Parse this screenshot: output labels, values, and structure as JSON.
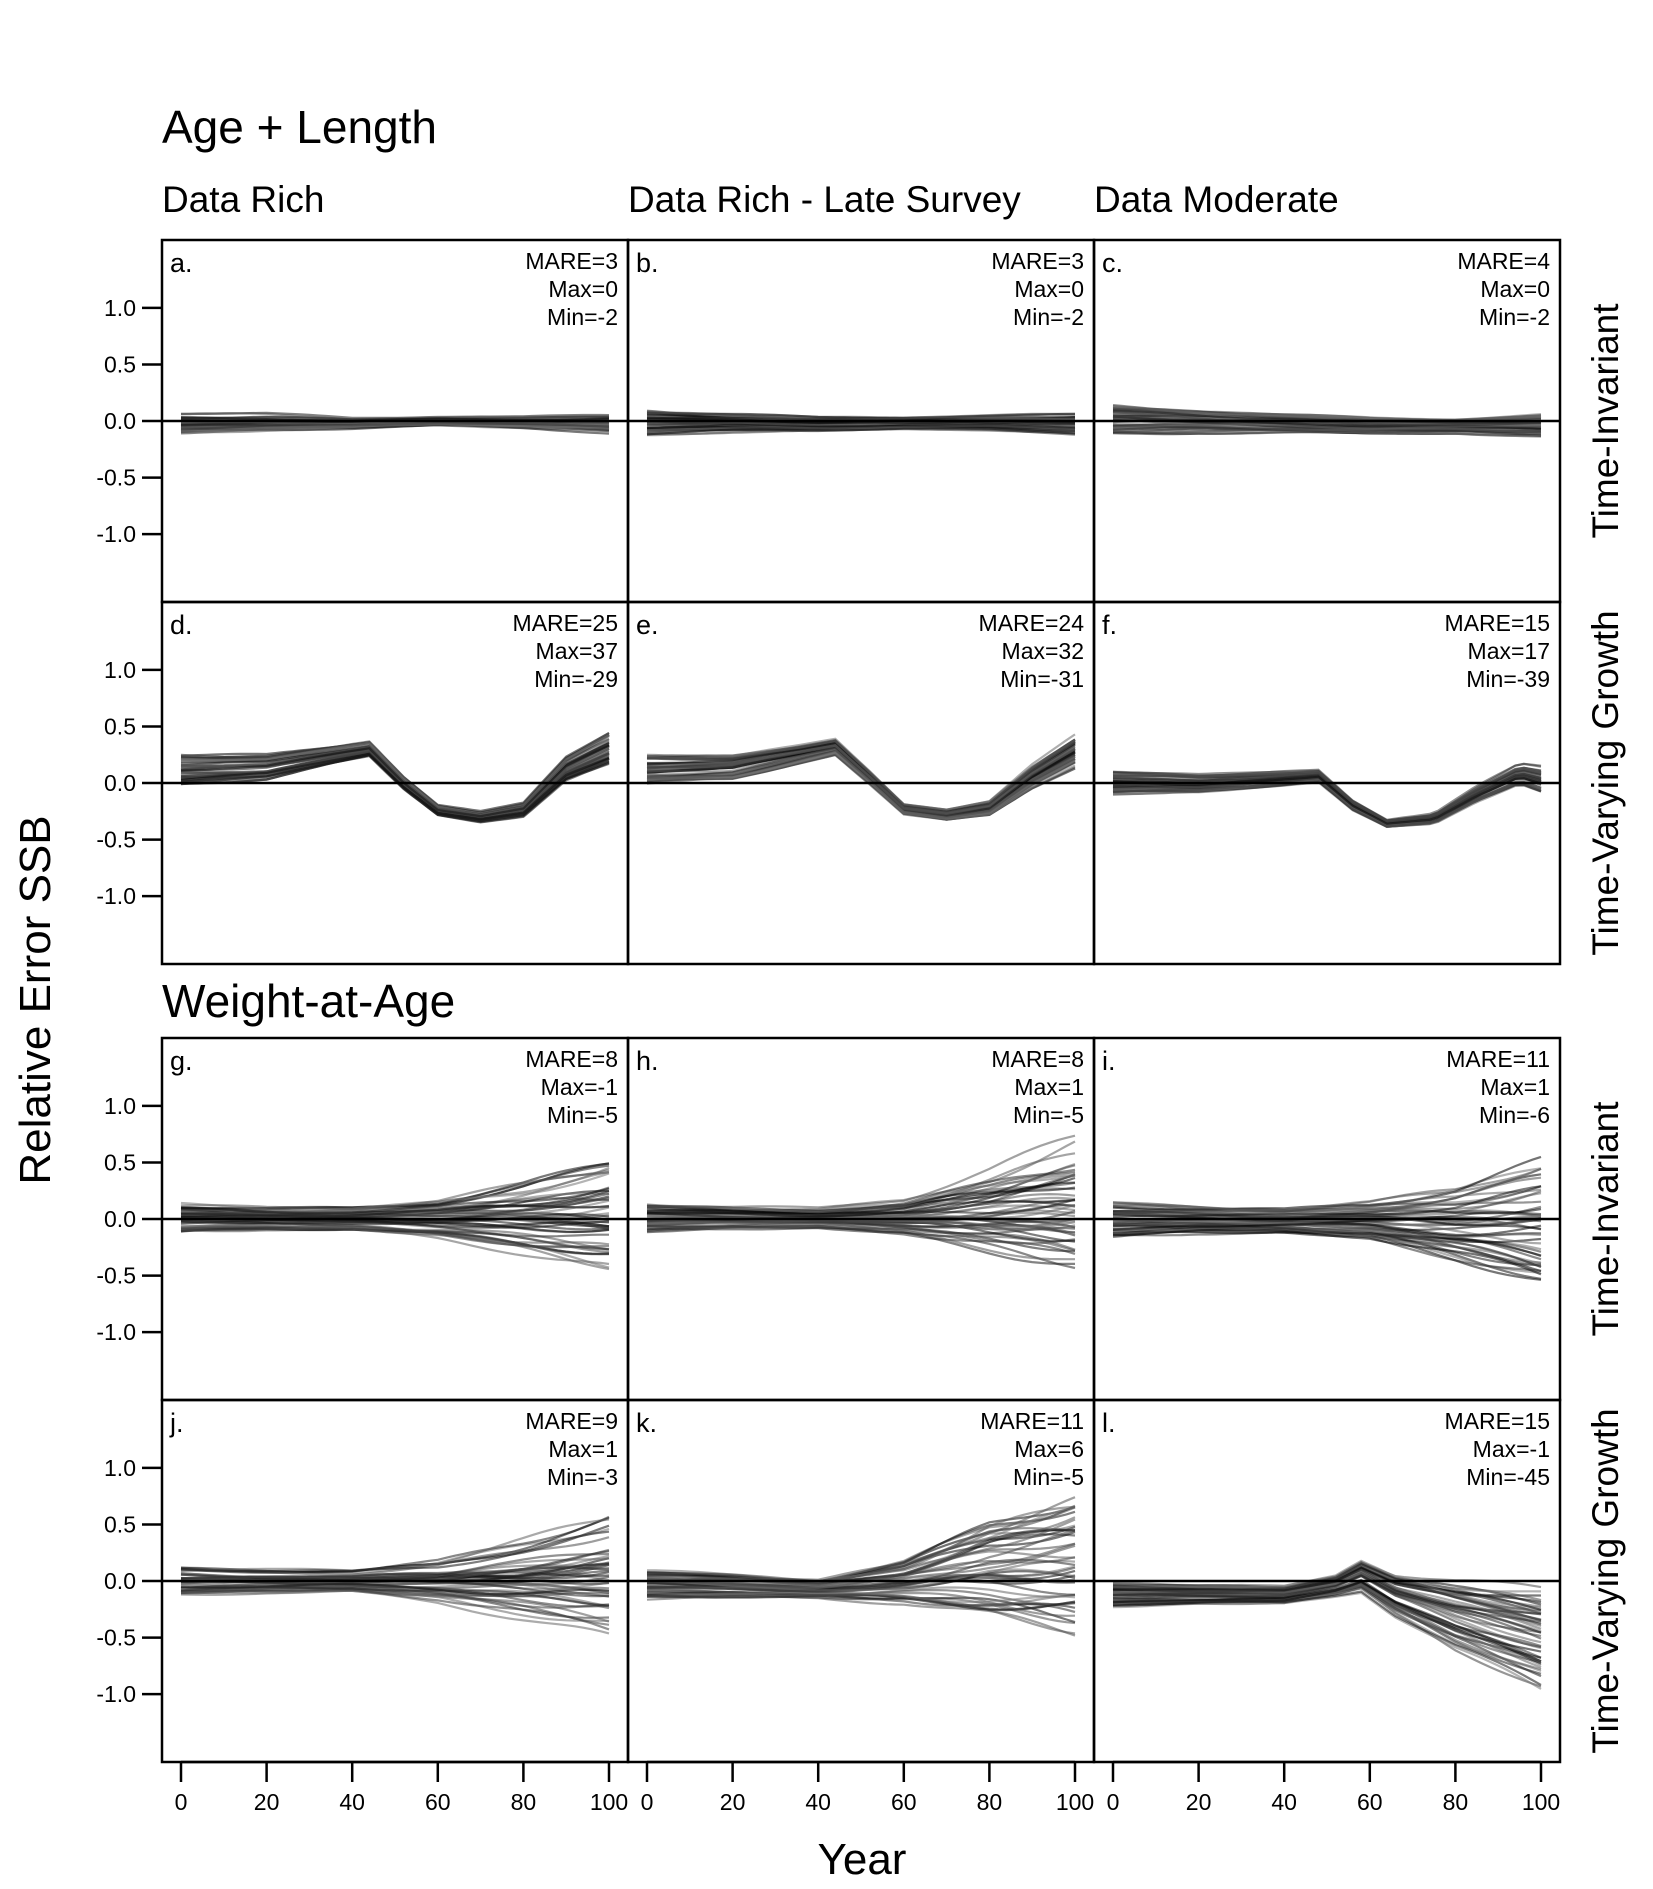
{
  "chart_data": {
    "type": "line",
    "ylabel": "Relative Error SSB",
    "xlabel": "Year",
    "x_range": [
      0,
      100
    ],
    "x_ticks": [
      0,
      20,
      40,
      60,
      80,
      100
    ],
    "ylim": [
      -1.6,
      1.6
    ],
    "y_ticks": [
      1.0,
      0.5,
      0.0,
      -0.5,
      -1.0
    ],
    "y_tick_labels": [
      "1.0",
      "0.5",
      "0.0",
      "-0.5",
      "-1.0"
    ],
    "reference_line": 0.0,
    "line_color": "#000000",
    "sections": [
      {
        "title": "Age + Length",
        "columns": [
          "Data Rich",
          "Data Rich - Late Survey",
          "Data Moderate"
        ],
        "rows": [
          "Time-Invariant",
          "Time-Varying Growth"
        ]
      },
      {
        "title": "Weight-at-Age",
        "columns": [],
        "rows": [
          "Time-Invariant",
          "Time-Varying Growth"
        ]
      }
    ],
    "panels": [
      {
        "letter": "a.",
        "mare": "MARE=3",
        "max": "Max=0",
        "min": "Min=-2",
        "median": [
          [
            0,
            -0.02
          ],
          [
            20,
            -0.01
          ],
          [
            40,
            -0.02
          ],
          [
            60,
            0.0
          ],
          [
            80,
            -0.01
          ],
          [
            100,
            -0.02
          ]
        ],
        "spread": [
          [
            0,
            0.1
          ],
          [
            20,
            0.08
          ],
          [
            40,
            0.05
          ],
          [
            60,
            0.04
          ],
          [
            80,
            0.05
          ],
          [
            100,
            0.08
          ]
        ]
      },
      {
        "letter": "b.",
        "mare": "MARE=3",
        "max": "Max=0",
        "min": "Min=-2",
        "median": [
          [
            0,
            -0.02
          ],
          [
            20,
            -0.02
          ],
          [
            40,
            -0.03
          ],
          [
            60,
            -0.02
          ],
          [
            80,
            -0.02
          ],
          [
            100,
            -0.03
          ]
        ],
        "spread": [
          [
            0,
            0.11
          ],
          [
            20,
            0.08
          ],
          [
            40,
            0.06
          ],
          [
            60,
            0.05
          ],
          [
            80,
            0.06
          ],
          [
            100,
            0.08
          ]
        ]
      },
      {
        "letter": "c.",
        "mare": "MARE=4",
        "max": "Max=0",
        "min": "Min=-2",
        "median": [
          [
            0,
            0.01
          ],
          [
            20,
            0.0
          ],
          [
            40,
            -0.02
          ],
          [
            60,
            -0.04
          ],
          [
            80,
            -0.04
          ],
          [
            100,
            -0.04
          ]
        ],
        "spread": [
          [
            0,
            0.13
          ],
          [
            20,
            0.1
          ],
          [
            40,
            0.08
          ],
          [
            60,
            0.07
          ],
          [
            80,
            0.06
          ],
          [
            100,
            0.09
          ]
        ]
      },
      {
        "letter": "d.",
        "mare": "MARE=25",
        "max": "Max=37",
        "min": "Min=-29",
        "median": [
          [
            0,
            0.12
          ],
          [
            20,
            0.14
          ],
          [
            35,
            0.24
          ],
          [
            44,
            0.3
          ],
          [
            52,
            0.0
          ],
          [
            60,
            -0.24
          ],
          [
            70,
            -0.3
          ],
          [
            80,
            -0.24
          ],
          [
            90,
            0.12
          ],
          [
            100,
            0.3
          ]
        ],
        "spread": [
          [
            0,
            0.13
          ],
          [
            20,
            0.1
          ],
          [
            35,
            0.07
          ],
          [
            44,
            0.06
          ],
          [
            52,
            0.05
          ],
          [
            60,
            0.04
          ],
          [
            70,
            0.04
          ],
          [
            80,
            0.05
          ],
          [
            90,
            0.09
          ],
          [
            100,
            0.12
          ]
        ]
      },
      {
        "letter": "e.",
        "mare": "MARE=24",
        "max": "Max=32",
        "min": "Min=-31",
        "median": [
          [
            0,
            0.12
          ],
          [
            20,
            0.14
          ],
          [
            35,
            0.25
          ],
          [
            44,
            0.32
          ],
          [
            52,
            0.05
          ],
          [
            60,
            -0.23
          ],
          [
            70,
            -0.28
          ],
          [
            80,
            -0.22
          ],
          [
            90,
            0.06
          ],
          [
            100,
            0.28
          ]
        ],
        "spread": [
          [
            0,
            0.12
          ],
          [
            20,
            0.1
          ],
          [
            35,
            0.07
          ],
          [
            44,
            0.06
          ],
          [
            52,
            0.05
          ],
          [
            60,
            0.04
          ],
          [
            70,
            0.04
          ],
          [
            80,
            0.05
          ],
          [
            90,
            0.08
          ],
          [
            100,
            0.11
          ]
        ]
      },
      {
        "letter": "f.",
        "mare": "MARE=15",
        "max": "Max=17",
        "min": "Min=-39",
        "median": [
          [
            0,
            0.0
          ],
          [
            20,
            -0.01
          ],
          [
            40,
            0.04
          ],
          [
            48,
            0.06
          ],
          [
            56,
            -0.2
          ],
          [
            64,
            -0.36
          ],
          [
            75,
            -0.32
          ],
          [
            85,
            -0.1
          ],
          [
            95,
            0.08
          ],
          [
            100,
            0.03
          ]
        ],
        "spread": [
          [
            0,
            0.1
          ],
          [
            20,
            0.08
          ],
          [
            40,
            0.06
          ],
          [
            48,
            0.05
          ],
          [
            56,
            0.04
          ],
          [
            64,
            0.03
          ],
          [
            75,
            0.04
          ],
          [
            85,
            0.06
          ],
          [
            95,
            0.08
          ],
          [
            100,
            0.1
          ]
        ]
      },
      {
        "letter": "g.",
        "mare": "MARE=8",
        "max": "Max=-1",
        "min": "Min=-5",
        "median": [
          [
            0,
            0.0
          ],
          [
            20,
            0.0
          ],
          [
            40,
            0.0
          ],
          [
            60,
            -0.01
          ],
          [
            80,
            0.0
          ],
          [
            100,
            0.02
          ]
        ],
        "spread": [
          [
            0,
            0.13
          ],
          [
            20,
            0.1
          ],
          [
            40,
            0.1
          ],
          [
            60,
            0.16
          ],
          [
            80,
            0.28
          ],
          [
            100,
            0.42
          ]
        ]
      },
      {
        "letter": "h.",
        "mare": "MARE=8",
        "max": "Max=1",
        "min": "Min=-5",
        "median": [
          [
            0,
            0.0
          ],
          [
            20,
            0.0
          ],
          [
            40,
            0.0
          ],
          [
            60,
            0.0
          ],
          [
            80,
            0.02
          ],
          [
            100,
            0.06
          ]
        ],
        "spread": [
          [
            0,
            0.13
          ],
          [
            20,
            0.1
          ],
          [
            40,
            0.09
          ],
          [
            60,
            0.16
          ],
          [
            80,
            0.34
          ],
          [
            100,
            0.55
          ]
        ]
      },
      {
        "letter": "i.",
        "mare": "MARE=11",
        "max": "Max=1",
        "min": "Min=-6",
        "median": [
          [
            0,
            -0.01
          ],
          [
            20,
            -0.01
          ],
          [
            40,
            -0.02
          ],
          [
            60,
            -0.02
          ],
          [
            80,
            -0.05
          ],
          [
            100,
            -0.04
          ]
        ],
        "spread": [
          [
            0,
            0.15
          ],
          [
            20,
            0.12
          ],
          [
            40,
            0.11
          ],
          [
            60,
            0.16
          ],
          [
            80,
            0.3
          ],
          [
            100,
            0.5
          ]
        ]
      },
      {
        "letter": "j.",
        "mare": "MARE=9",
        "max": "Max=1",
        "min": "Min=-3",
        "median": [
          [
            0,
            0.0
          ],
          [
            20,
            0.0
          ],
          [
            40,
            0.0
          ],
          [
            60,
            0.0
          ],
          [
            80,
            0.02
          ],
          [
            100,
            0.05
          ]
        ],
        "spread": [
          [
            0,
            0.12
          ],
          [
            20,
            0.1
          ],
          [
            40,
            0.09
          ],
          [
            60,
            0.16
          ],
          [
            80,
            0.3
          ],
          [
            100,
            0.45
          ]
        ]
      },
      {
        "letter": "k.",
        "mare": "MARE=11",
        "max": "Max=6",
        "min": "Min=-5",
        "median": [
          [
            0,
            -0.04
          ],
          [
            20,
            -0.05
          ],
          [
            40,
            -0.07
          ],
          [
            60,
            -0.02
          ],
          [
            80,
            0.08
          ],
          [
            100,
            0.12
          ]
        ],
        "spread": [
          [
            0,
            0.13
          ],
          [
            20,
            0.11
          ],
          [
            40,
            0.09
          ],
          [
            60,
            0.2
          ],
          [
            80,
            0.45
          ],
          [
            100,
            0.62
          ]
        ]
      },
      {
        "letter": "l.",
        "mare": "MARE=15",
        "max": "Max=-1",
        "min": "Min=-45",
        "median": [
          [
            0,
            -0.12
          ],
          [
            20,
            -0.12
          ],
          [
            40,
            -0.12
          ],
          [
            52,
            -0.04
          ],
          [
            58,
            0.05
          ],
          [
            66,
            -0.12
          ],
          [
            80,
            -0.3
          ],
          [
            100,
            -0.5
          ]
        ],
        "spread": [
          [
            0,
            0.1
          ],
          [
            20,
            0.08
          ],
          [
            40,
            0.07
          ],
          [
            52,
            0.08
          ],
          [
            58,
            0.12
          ],
          [
            66,
            0.16
          ],
          [
            80,
            0.25
          ],
          [
            100,
            0.35
          ]
        ]
      }
    ]
  }
}
